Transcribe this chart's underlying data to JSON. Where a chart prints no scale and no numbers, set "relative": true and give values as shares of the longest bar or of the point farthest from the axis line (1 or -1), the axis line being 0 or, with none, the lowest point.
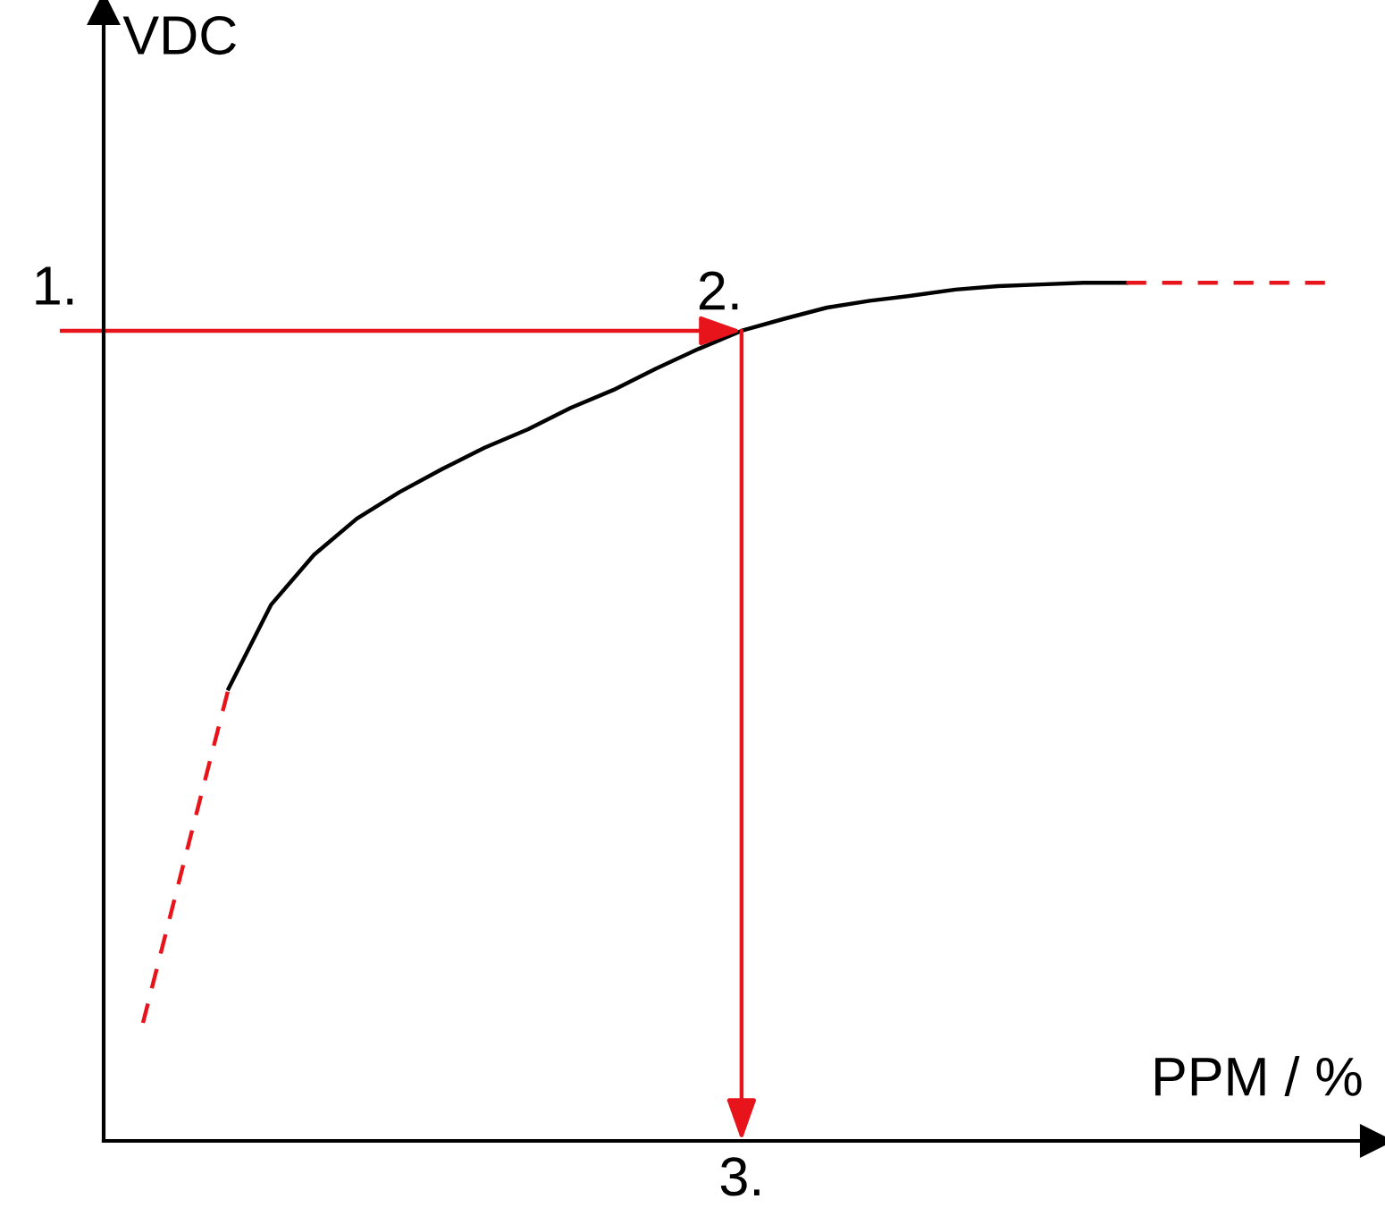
{
  "chart_data": {
    "type": "line",
    "relative": true,
    "xlabel": "PPM / %",
    "ylabel": "VDC",
    "categories": [
      null,
      null,
      null,
      null,
      null,
      null,
      null,
      null,
      null,
      null,
      null,
      null,
      null,
      null,
      null,
      null,
      null,
      null,
      null,
      null,
      null,
      null,
      null,
      null,
      null,
      null,
      null,
      null,
      null
    ],
    "series": [
      {
        "color": "#e8141b",
        "line_style": "dashed",
        "values": [
          0.1375,
          0.333,
          0.527,
          null,
          null,
          null,
          null,
          null,
          null,
          null,
          null,
          null,
          null,
          null,
          null,
          null,
          null,
          null,
          null,
          null,
          null,
          null,
          null,
          null,
          null,
          null,
          null,
          null,
          null
        ]
      },
      {
        "color": "#000000",
        "line_style": "solid",
        "values": [
          null,
          null,
          0.527,
          0.625,
          0.683,
          0.725,
          0.756,
          0.783,
          0.808,
          0.829,
          0.854,
          0.875,
          0.9,
          0.923,
          0.944,
          0.958,
          0.971,
          0.979,
          0.985,
          0.992,
          0.996,
          0.998,
          1,
          1,
          null,
          null,
          null,
          null,
          null
        ]
      },
      {
        "color": "#e8141b",
        "line_style": "dashed",
        "values": [
          null,
          null,
          null,
          null,
          null,
          null,
          null,
          null,
          null,
          null,
          null,
          null,
          null,
          null,
          null,
          null,
          null,
          null,
          null,
          null,
          null,
          null,
          null,
          1,
          1,
          1,
          1,
          1,
          1
        ]
      }
    ],
    "ref_lines": [
      {
        "axis": "y",
        "value": 0.944,
        "label": "1.",
        "color": "#e8141b"
      }
    ],
    "annotations": [
      "2.",
      "3."
    ],
    "grid": false,
    "legend": false,
    "marker": "none"
  }
}
